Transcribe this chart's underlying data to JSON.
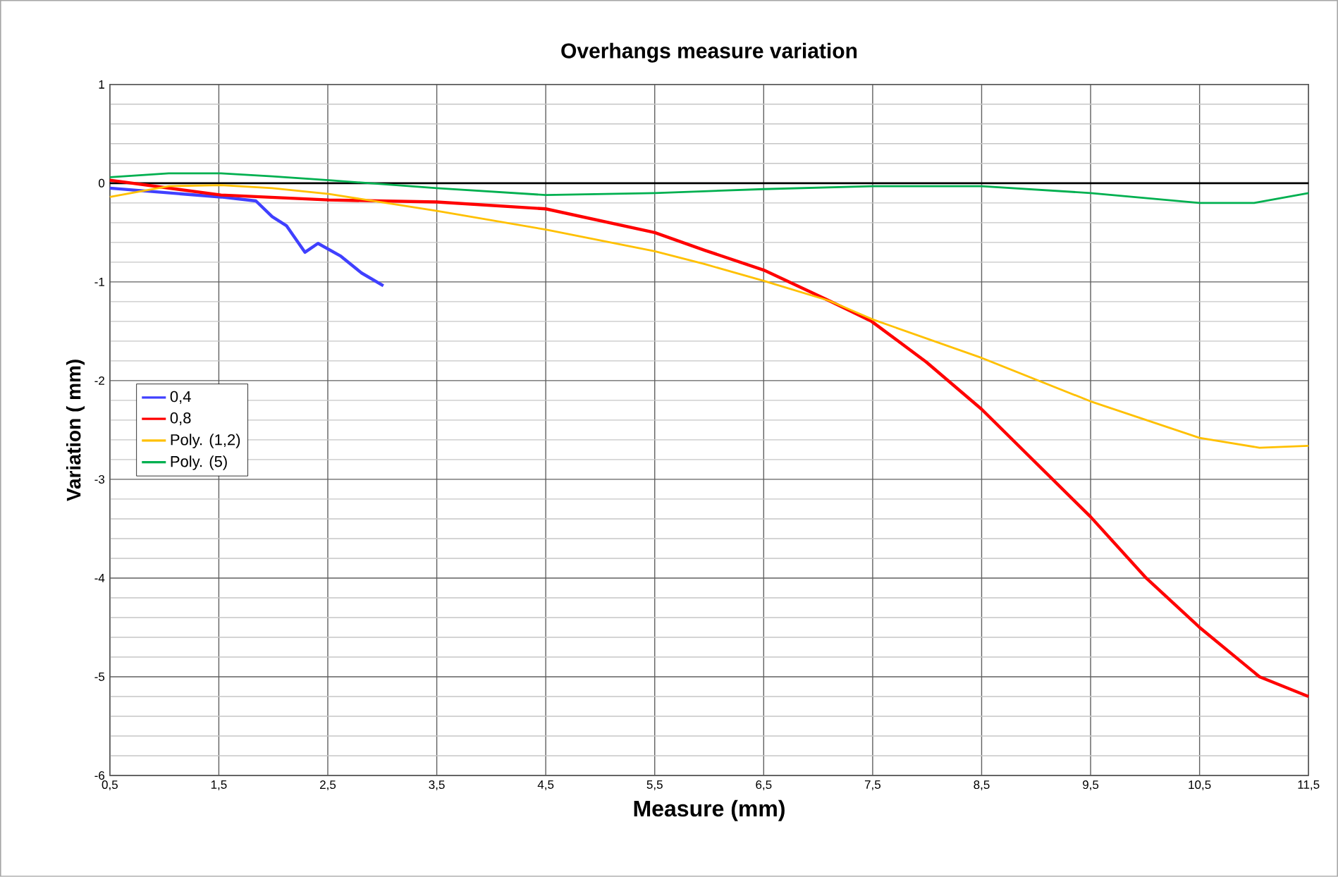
{
  "chart_data": {
    "type": "line",
    "title": "Overhangs measure variation",
    "xlabel": "Measure (mm)",
    "ylabel": "Variation ( mm)",
    "xlim": [
      0.5,
      11.5
    ],
    "ylim": [
      -6,
      1
    ],
    "xticks": [
      {
        "value": 0.5,
        "label": "0,5"
      },
      {
        "value": 1.5,
        "label": "1,5"
      },
      {
        "value": 2.5,
        "label": "2,5"
      },
      {
        "value": 3.5,
        "label": "3,5"
      },
      {
        "value": 4.5,
        "label": "4,5"
      },
      {
        "value": 5.5,
        "label": "5,5"
      },
      {
        "value": 6.5,
        "label": "6,5"
      },
      {
        "value": 7.5,
        "label": "7,5"
      },
      {
        "value": 8.5,
        "label": "8,5"
      },
      {
        "value": 9.5,
        "label": "9,5"
      },
      {
        "value": 10.5,
        "label": "10,5"
      },
      {
        "value": 11.5,
        "label": "11,5"
      }
    ],
    "yticks": [
      -6,
      -5,
      -4,
      -3,
      -2,
      -1,
      0,
      1
    ],
    "grid": true,
    "legend": "left",
    "marker": "none",
    "line_style": "solid",
    "ref_lines": [
      {
        "axis": "y",
        "value": 0,
        "color": "#000000"
      }
    ],
    "series": [
      {
        "name": "0,4",
        "color": "#4040ff",
        "x": [
          0.5,
          1.52,
          1.84,
          1.99,
          2.12,
          2.29,
          2.41,
          2.62,
          2.81,
          3.01
        ],
        "values": [
          -0.05,
          -0.14,
          -0.18,
          -0.34,
          -0.43,
          -0.7,
          -0.61,
          -0.74,
          -0.91,
          -1.04
        ]
      },
      {
        "name": "0,8",
        "color": "#ff0000",
        "x": [
          0.5,
          1.52,
          2.51,
          3.5,
          4.5,
          5.5,
          5.96,
          6.5,
          7.1,
          7.49,
          7.99,
          8.5,
          9.5,
          10.01,
          10.5,
          11.05,
          11.5
        ],
        "values": [
          0.03,
          -0.12,
          -0.17,
          -0.19,
          -0.26,
          -0.5,
          -0.68,
          -0.88,
          -1.19,
          -1.4,
          -1.81,
          -2.29,
          -3.38,
          -4.0,
          -4.5,
          -5.0,
          -5.2
        ]
      },
      {
        "name": "Poly. (1,2)",
        "color": "#ffc000",
        "x": [
          0.5,
          1.04,
          1.52,
          1.99,
          2.51,
          3.5,
          4.5,
          5.5,
          5.96,
          6.5,
          7.1,
          7.5,
          8.5,
          9.5,
          10.5,
          11.05,
          11.5
        ],
        "values": [
          -0.14,
          -0.03,
          -0.02,
          -0.05,
          -0.11,
          -0.28,
          -0.47,
          -0.69,
          -0.82,
          -0.99,
          -1.19,
          -1.38,
          -1.77,
          -2.21,
          -2.58,
          -2.68,
          -2.66
        ]
      },
      {
        "name": "Poly. (5)",
        "color": "#00b050",
        "x": [
          0.5,
          1.04,
          1.52,
          1.99,
          2.51,
          3.5,
          4.5,
          5.5,
          6.5,
          7.5,
          8.5,
          9.5,
          10.5,
          11.0,
          11.5
        ],
        "values": [
          0.06,
          0.1,
          0.1,
          0.07,
          0.03,
          -0.05,
          -0.12,
          -0.1,
          -0.06,
          -0.03,
          -0.03,
          -0.1,
          -0.2,
          -0.2,
          -0.1
        ]
      }
    ]
  }
}
